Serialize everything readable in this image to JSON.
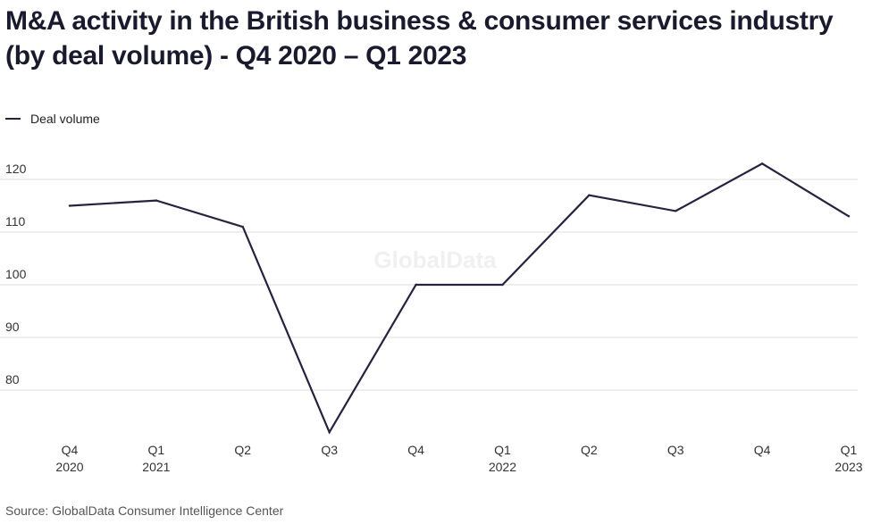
{
  "title": "M&A activity in the British business & consumer services industry (by deal volume) - Q4 2020 – Q1 2023",
  "legend": {
    "label": "Deal volume",
    "color": "#26233f"
  },
  "watermark": "GlobalData",
  "source": "Source: GlobalData Consumer Intelligence Center",
  "chart_data": {
    "type": "line",
    "title": "M&A activity in the British business & consumer services industry (by deal volume) - Q4 2020 – Q1 2023",
    "categories": [
      [
        "Q4",
        "2020"
      ],
      [
        "Q1",
        "2021"
      ],
      [
        "Q2"
      ],
      [
        "Q3"
      ],
      [
        "Q4"
      ],
      [
        "Q1",
        "2022"
      ],
      [
        "Q2"
      ],
      [
        "Q3"
      ],
      [
        "Q4"
      ],
      [
        "Q1",
        "2023"
      ]
    ],
    "series": [
      {
        "name": "Deal volume",
        "values": [
          115,
          116,
          111,
          72,
          100,
          100,
          117,
          114,
          123,
          113
        ]
      }
    ],
    "yticks": [
      80,
      90,
      100,
      110,
      120
    ],
    "ylim": [
      70,
      125
    ],
    "grid": true,
    "legend_position": "top-left",
    "xlabel": "",
    "ylabel": ""
  }
}
